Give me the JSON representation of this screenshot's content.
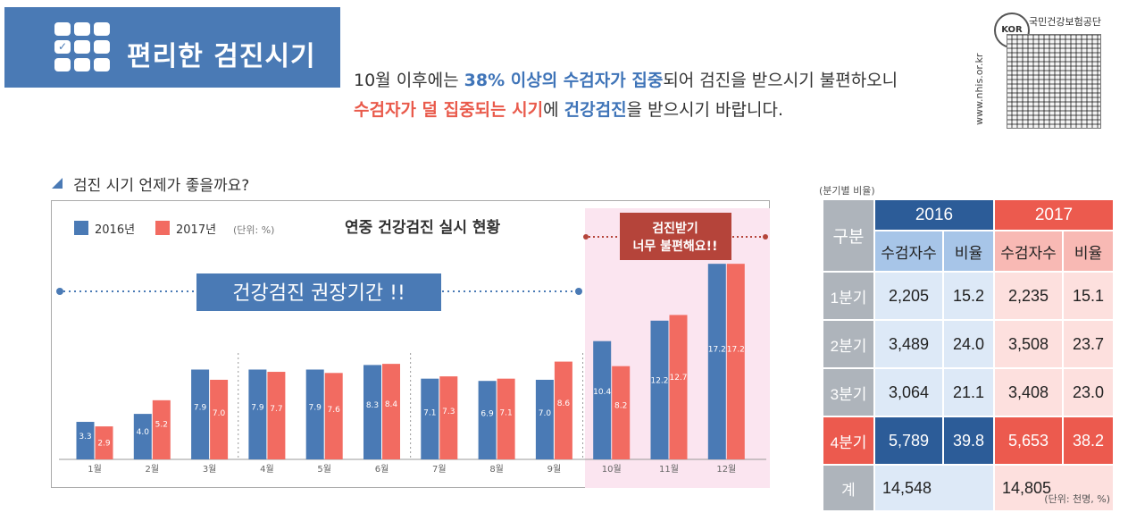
{
  "header": {
    "title": "편리한 검진시기",
    "intro_line1": [
      "10월 이후에는 ",
      "38% 이상의 수검자가 집중",
      "되어 검진을 받으시기 불편하오니"
    ],
    "intro_line2": [
      "수검자가 덜 집중되는 시기",
      "에 ",
      "건강검진",
      "을 받으시기 바랍니다."
    ]
  },
  "qr": {
    "brand": "KOR",
    "org": "국민건강보험공단",
    "url": "www.nhis.or.kr"
  },
  "section_title": "검진 시기 언제가 좋을까요?",
  "chart_data": {
    "type": "bar",
    "title": "연중 건강검진 실시 현황",
    "unit_note": "(단위: %)",
    "categories": [
      "1월",
      "2월",
      "3월",
      "4월",
      "5월",
      "6월",
      "7월",
      "8월",
      "9월",
      "10월",
      "11월",
      "12월"
    ],
    "series": [
      {
        "name": "2016년",
        "color": "#4a7ab5",
        "values": [
          3.3,
          4.0,
          7.9,
          7.9,
          7.9,
          8.3,
          7.1,
          6.9,
          7.0,
          10.4,
          12.2,
          17.2
        ]
      },
      {
        "name": "2017년",
        "color": "#f26b61",
        "values": [
          2.9,
          5.2,
          7.0,
          7.7,
          7.6,
          8.4,
          7.3,
          7.1,
          8.6,
          8.2,
          12.7,
          17.2
        ]
      }
    ],
    "ylim": [
      0,
      18
    ],
    "annotations": {
      "recommended": "건강검진  권장기간 !!",
      "busy_line1": "검진받기",
      "busy_line2": "너무 불편해요!!"
    },
    "colors": {
      "highlight_bg": "#fbe5f0",
      "label_bg": "#4a7ab5",
      "busy_bg": "#b5443a"
    }
  },
  "table": {
    "caption": "(분기별 비율)",
    "unit": "(단위: 천명, %)",
    "header_gubun": "구분",
    "years": [
      "2016",
      "2017"
    ],
    "subheaders": [
      "수검자수",
      "비율",
      "수검자수",
      "비율"
    ],
    "rows": [
      {
        "label": "1분기",
        "v": [
          "2,205",
          "15.2",
          "2,235",
          "15.1"
        ]
      },
      {
        "label": "2분기",
        "v": [
          "3,489",
          "24.0",
          "3,508",
          "23.7"
        ]
      },
      {
        "label": "3분기",
        "v": [
          "3,064",
          "21.1",
          "3,408",
          "23.0"
        ]
      },
      {
        "label": "4분기",
        "v": [
          "5,789",
          "39.8",
          "5,653",
          "38.2"
        ]
      }
    ],
    "total": {
      "label": "계",
      "v16": "14,548",
      "v17": "14,805"
    }
  }
}
